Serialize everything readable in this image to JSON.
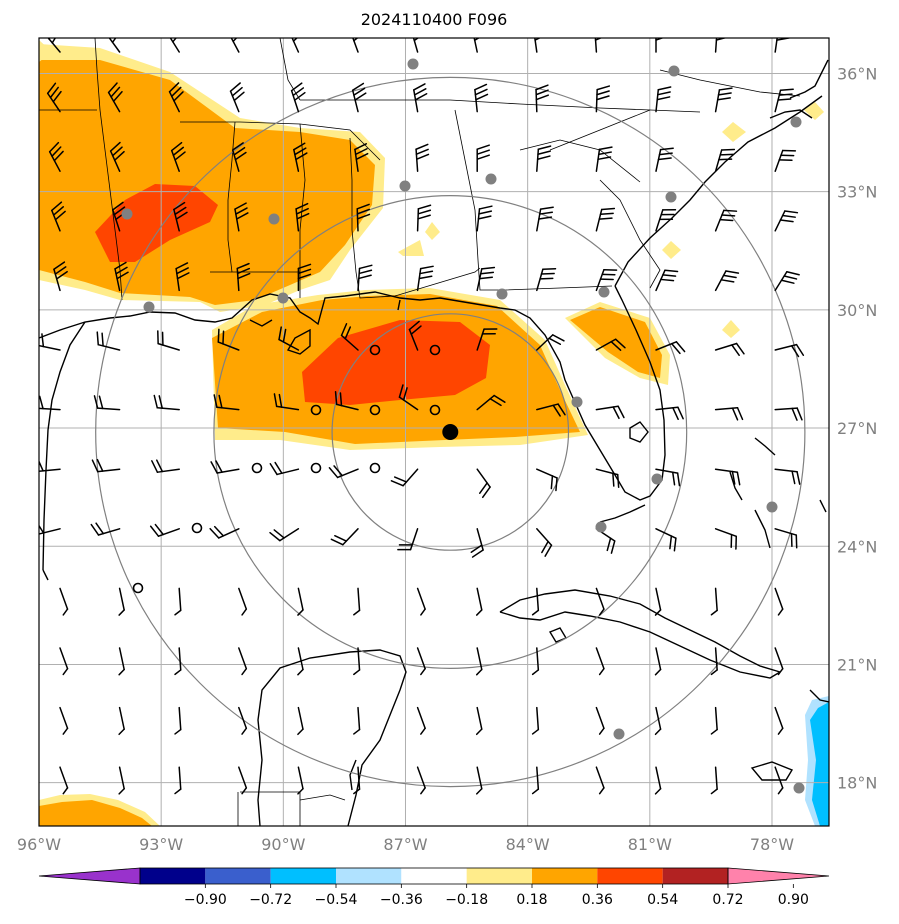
{
  "title": "2024110400 F096",
  "map": {
    "lon_ticks": [
      "96°W",
      "93°W",
      "90°W",
      "87°W",
      "84°W",
      "81°W",
      "78°W"
    ],
    "lat_ticks": [
      "36°N",
      "33°N",
      "30°N",
      "27°N",
      "24°N",
      "21°N",
      "18°N"
    ],
    "center_marker": {
      "lon": -85.9,
      "lat": 26.9
    },
    "range_rings_deg": [
      3,
      6,
      9
    ],
    "colors": {
      "land_line": "#000000",
      "grid": "#b0b0b0",
      "ring": "#808080",
      "tick_label": "#808080"
    }
  },
  "colorbar": {
    "labels": [
      "−0.90",
      "−0.72",
      "−0.54",
      "−0.36",
      "−0.18",
      "0.18",
      "0.36",
      "0.54",
      "0.72",
      "0.90"
    ],
    "colors": [
      "#9932cc",
      "#00008b",
      "#3a5fcd",
      "#00bfff",
      "#b0e2ff",
      "#ffffff",
      "#ffec8b",
      "#ffa500",
      "#ff4500",
      "#b22222",
      "#ff82ab"
    ]
  }
}
